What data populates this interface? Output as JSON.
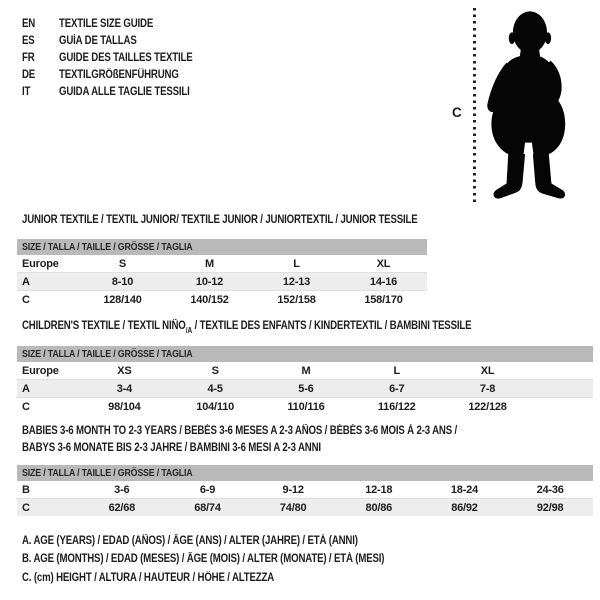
{
  "colors": {
    "band_bg": "#b9b9b9",
    "zebra_bg": "#ededed",
    "text": "#1d1d1d"
  },
  "languages": {
    "items": [
      {
        "code": "EN",
        "text": "TEXTILE SIZE GUIDE"
      },
      {
        "code": "ES",
        "text": "GUÍA DE TALLAS"
      },
      {
        "code": "FR",
        "text": "GUIDE DES TAILLES TEXTILE"
      },
      {
        "code": "DE",
        "text": "TEXTILGRÖßENFÜHRUNG"
      },
      {
        "code": "IT",
        "text": "GUIDA ALLE TAGLIE TESSILI"
      }
    ]
  },
  "figure": {
    "measure_label": "C"
  },
  "tables": [
    {
      "id": "junior",
      "title_lines": [
        [
          {
            "text": "JUNIOR TEXTILE / TEXTIL JUNIOR/ TEXTILE JUNIOR / JUNIORTEXTIL / JUNIOR TESSILE"
          }
        ]
      ],
      "size_header": "SIZE / TALLA / TAILLE / GRÖSSE / TAGLIA",
      "rows": [
        [
          "Europe",
          "S",
          "M",
          "L",
          "XL"
        ],
        [
          "A",
          "8-10",
          "10-12",
          "12-13",
          "14-16"
        ],
        [
          "C",
          "128/140",
          "140/152",
          "152/158",
          "158/170"
        ]
      ]
    },
    {
      "id": "children",
      "title_lines": [
        [
          {
            "text": "CHILDREN'S TEXTILE / TEXTIL NIÑO"
          },
          {
            "text": "/A",
            "sub": true
          },
          {
            "text": " / TEXTILE DES ENFANTS / KINDERTEXTIL / BAMBINI TESSILE"
          }
        ]
      ],
      "size_header": "SIZE / TALLA / TAILLE / GRÖSSE / TAGLIA",
      "rows": [
        [
          "Europe",
          "XS",
          "S",
          "M",
          "L",
          "XL"
        ],
        [
          "A",
          "3-4",
          "4-5",
          "5-6",
          "6-7",
          "7-8"
        ],
        [
          "C",
          "98/104",
          "104/110",
          "110/116",
          "116/122",
          "122/128"
        ]
      ]
    },
    {
      "id": "babies",
      "title_lines": [
        [
          {
            "text": "BABIES 3-6 MONTH TO 2-3 YEARS / BEBÉS 3-6 MESES A 2-3 AÑOS / BÉBÉS 3-6 MOIS À 2-3 ANS /"
          }
        ],
        [
          {
            "text": "BABYS 3-6 MONATE BIS 2-3 JAHRE / BAMBINI 3-6 MESI A 2-3 ANNI"
          }
        ]
      ],
      "size_header": "SIZE / TALLA / TAILLE / GRÖSSE / TAGLIA",
      "rows": [
        [
          "B",
          "3-6",
          "6-9",
          "9-12",
          "12-18",
          "18-24",
          "24-36"
        ],
        [
          "C",
          "62/68",
          "68/74",
          "74/80",
          "80/86",
          "86/92",
          "92/98"
        ]
      ]
    }
  ],
  "footnotes": [
    "A. AGE (YEARS) / EDAD (AÑOS) / ÂGE (ANS) / ALTER (JAHRE) / ETÀ (ANNI)",
    "B. AGE (MONTHS) / EDAD (MESES) / ÂGE (MOIS) / ALTER (MONATE) / ETÀ (MESI)",
    "C. (cm) HEIGHT / ALTURA / HAUTEUR / HÖHE / ALTEZZA"
  ]
}
